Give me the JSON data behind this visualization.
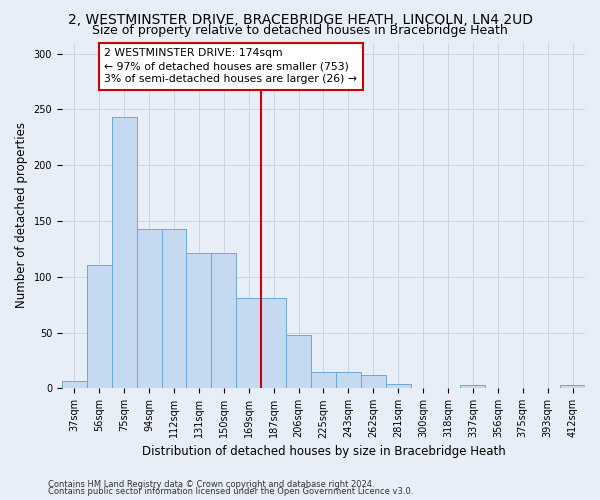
{
  "title": "2, WESTMINSTER DRIVE, BRACEBRIDGE HEATH, LINCOLN, LN4 2UD",
  "subtitle": "Size of property relative to detached houses in Bracebridge Heath",
  "xlabel": "Distribution of detached houses by size in Bracebridge Heath",
  "ylabel": "Number of detached properties",
  "categories": [
    "37sqm",
    "56sqm",
    "75sqm",
    "94sqm",
    "112sqm",
    "131sqm",
    "150sqm",
    "169sqm",
    "187sqm",
    "206sqm",
    "225sqm",
    "243sqm",
    "262sqm",
    "281sqm",
    "300sqm",
    "318sqm",
    "337sqm",
    "356sqm",
    "375sqm",
    "393sqm",
    "412sqm"
  ],
  "values": [
    7,
    111,
    243,
    143,
    143,
    121,
    121,
    81,
    81,
    48,
    15,
    15,
    12,
    4,
    0,
    0,
    3,
    0,
    0,
    0,
    3
  ],
  "bar_color": "#c5d9f0",
  "bar_edge_color": "#6aaad4",
  "vline_x_index": 7,
  "vline_color": "#cc0000",
  "annotation_text": "2 WESTMINSTER DRIVE: 174sqm\n← 97% of detached houses are smaller (753)\n3% of semi-detached houses are larger (26) →",
  "annotation_box_color": "#cc0000",
  "footer1": "Contains HM Land Registry data © Crown copyright and database right 2024.",
  "footer2": "Contains public sector information licensed under the Open Government Licence v3.0.",
  "bg_color": "#e8eef8",
  "plot_bg_color": "#e8eef8",
  "grid_color": "#c8d4e8",
  "title_fontsize": 10,
  "subtitle_fontsize": 9,
  "ylabel_fontsize": 8.5,
  "xlabel_fontsize": 8.5,
  "tick_fontsize": 7,
  "ylim": [
    0,
    310
  ],
  "yticks": [
    0,
    50,
    100,
    150,
    200,
    250,
    300
  ]
}
